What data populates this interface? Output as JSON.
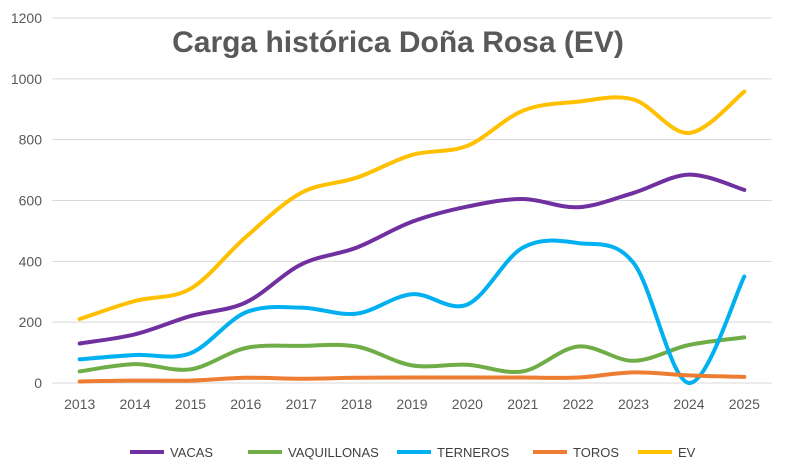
{
  "chart_data": {
    "type": "line",
    "title": "Carga histórica Doña Rosa (EV)",
    "xlabel": "",
    "ylabel": "",
    "categories": [
      "2013",
      "2014",
      "2015",
      "2016",
      "2017",
      "2018",
      "2019",
      "2020",
      "2021",
      "2022",
      "2023",
      "2024",
      "2025"
    ],
    "ylim": [
      0,
      1200
    ],
    "yticks": [
      "0",
      "200",
      "400",
      "600",
      "800",
      "1000",
      "1200"
    ],
    "grid": true,
    "legend_position": "bottom",
    "series": [
      {
        "name": "VACAS",
        "color": "#7030a0",
        "values": [
          130,
          160,
          220,
          265,
          390,
          445,
          530,
          580,
          605,
          578,
          625,
          685,
          635
        ]
      },
      {
        "name": "VAQUILLONAS",
        "color": "#70ad47",
        "values": [
          38,
          62,
          45,
          115,
          122,
          120,
          58,
          60,
          38,
          120,
          73,
          125,
          150
        ]
      },
      {
        "name": "TERNEROS",
        "color": "#00b0f0",
        "values": [
          78,
          92,
          98,
          232,
          248,
          228,
          292,
          258,
          445,
          460,
          395,
          0,
          350
        ]
      },
      {
        "name": "TOROS",
        "color": "#ed7d31",
        "values": [
          5,
          8,
          8,
          17,
          14,
          17,
          18,
          18,
          18,
          18,
          35,
          25,
          20
        ]
      },
      {
        "name": "EV",
        "color": "#ffc000",
        "values": [
          210,
          270,
          310,
          480,
          625,
          675,
          750,
          780,
          895,
          925,
          932,
          822,
          958
        ]
      }
    ]
  }
}
